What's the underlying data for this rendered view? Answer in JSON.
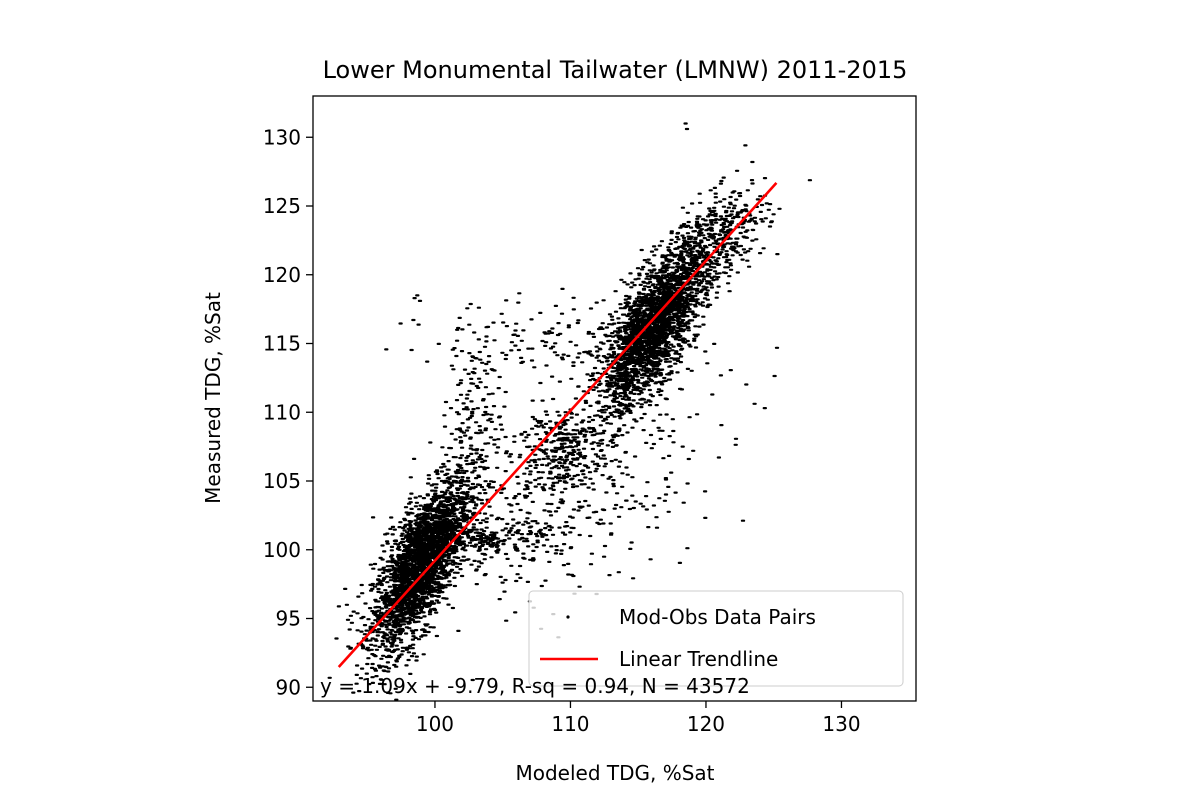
{
  "chart_data": {
    "type": "scatter",
    "title": "Lower Monumental Tailwater (LMNW) 2011-2015",
    "xlabel": "Modeled TDG, %Sat",
    "ylabel": "Measured TDG, %Sat",
    "xlim": [
      91,
      135.5
    ],
    "ylim": [
      89,
      133
    ],
    "xticks": [
      100,
      110,
      120,
      130
    ],
    "yticks": [
      90,
      95,
      100,
      105,
      110,
      115,
      120,
      125,
      130
    ],
    "grid": false,
    "legend_position": "lower-right",
    "series": [
      {
        "name": "Mod-Obs Data Pairs",
        "kind": "scatter",
        "color": "#000000",
        "clusters": [
          {
            "cx": 99.0,
            "cy": 99.0,
            "sx": 1.8,
            "sy": 3.2,
            "rho": 0.72,
            "n": 2600
          },
          {
            "cx": 116.0,
            "cy": 116.0,
            "sx": 1.8,
            "sy": 2.8,
            "rho": 0.7,
            "n": 2200
          },
          {
            "cx": 120.5,
            "cy": 122.0,
            "sx": 2.0,
            "sy": 2.2,
            "rho": 0.6,
            "n": 500
          },
          {
            "cx": 109.0,
            "cy": 107.5,
            "sx": 1.6,
            "sy": 1.6,
            "rho": 0.2,
            "n": 260
          },
          {
            "cx": 104.0,
            "cy": 100.8,
            "sx": 2.2,
            "sy": 0.6,
            "rho": 0.1,
            "n": 200
          },
          {
            "cx": 110.0,
            "cy": 104.0,
            "sx": 5.5,
            "sy": 4.5,
            "rho": 0.6,
            "n": 420
          },
          {
            "cx": 103.0,
            "cy": 110.0,
            "sx": 1.0,
            "sy": 3.0,
            "rho": 0.0,
            "n": 140
          },
          {
            "cx": 110.0,
            "cy": 115.5,
            "sx": 5.0,
            "sy": 1.4,
            "rho": 0.0,
            "n": 160
          }
        ],
        "outliers": [
          {
            "x": 98.5,
            "y": 118.3
          },
          {
            "x": 98.7,
            "y": 118.5
          },
          {
            "x": 98.9,
            "y": 118.1
          },
          {
            "x": 118.5,
            "y": 131.0
          },
          {
            "x": 118.6,
            "y": 130.6
          },
          {
            "x": 93.5,
            "y": 96.0
          },
          {
            "x": 94.0,
            "y": 95.5
          },
          {
            "x": 93.8,
            "y": 95.2
          }
        ]
      },
      {
        "name": "Linear Trendline",
        "kind": "line",
        "color": "#ff0000",
        "slope": 1.09,
        "intercept": -9.79,
        "x_range": [
          92.9,
          125.2
        ]
      }
    ],
    "annotation": "y = 1.09x + -9.79, R-sq = 0.94, N = 43572"
  }
}
